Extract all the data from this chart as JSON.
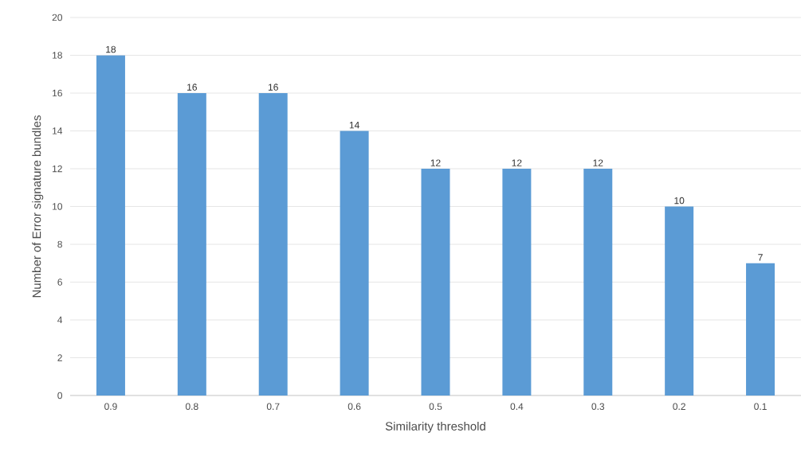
{
  "chart_data": {
    "type": "bar",
    "xlabel": "Similarity threshold",
    "ylabel": "Number of Error signature bundles",
    "categories": [
      "0.9",
      "0.8",
      "0.7",
      "0.6",
      "0.5",
      "0.4",
      "0.3",
      "0.2",
      "0.1"
    ],
    "values": [
      18,
      16,
      16,
      14,
      12,
      12,
      12,
      10,
      7
    ],
    "color": "#5b9bd5",
    "ylim": [
      0,
      20
    ],
    "yticks": [
      0,
      2,
      4,
      6,
      8,
      10,
      12,
      14,
      16,
      18,
      20
    ],
    "grid": "y",
    "data_labels": true
  }
}
